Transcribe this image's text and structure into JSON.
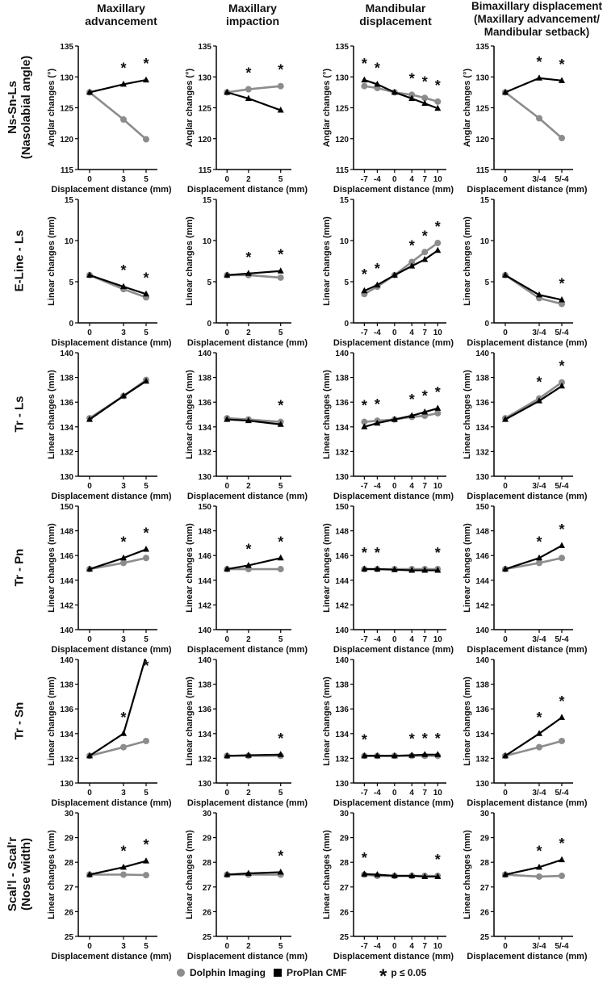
{
  "columns": [
    {
      "title": "Maxillary\nadvancement"
    },
    {
      "title": "Maxillary\nimpaction"
    },
    {
      "title": "Mandibular\ndisplacement"
    },
    {
      "title": "Bimaxillary displacement\n(Maxillary advancement/\nMandibular setback)"
    }
  ],
  "rows": [
    {
      "label": "Ns-Sn-Ls\n(Nasolabial angle)"
    },
    {
      "label": "E-Line - Ls"
    },
    {
      "label": "Tr - Ls"
    },
    {
      "label": "Tr - Pn"
    },
    {
      "label": "Tr - Sn"
    },
    {
      "label": "Scal'l - Scal'r\n(Nose width)"
    }
  ],
  "legend": {
    "dolphin": "Dolphin Imaging",
    "proplan": "ProPlan CMF",
    "sig": "p ≤ 0.05",
    "sig_symbol": "*"
  },
  "colors": {
    "dolphin": "#8c8c8c",
    "proplan": "#000000"
  },
  "chart_data": [
    {
      "type": "line",
      "row": 0,
      "col": 0,
      "xlabel": "Displacement distance (mm)",
      "ylabel": "Anglar changes (°)",
      "ylim": [
        115,
        135
      ],
      "ystep": 5,
      "x": [
        0,
        3,
        5
      ],
      "x_tick_labels": [
        "0",
        "3",
        "5"
      ],
      "series": [
        {
          "name": "Dolphin Imaging",
          "values": [
            127.5,
            123.1,
            119.9
          ]
        },
        {
          "name": "ProPlan CMF",
          "values": [
            127.5,
            128.8,
            129.5
          ]
        }
      ],
      "significant": [
        false,
        true,
        true
      ]
    },
    {
      "type": "line",
      "row": 0,
      "col": 1,
      "xlabel": "Displacement distance (mm)",
      "ylabel": "Anglar changes (°)",
      "ylim": [
        115,
        135
      ],
      "ystep": 5,
      "x": [
        0,
        2,
        5
      ],
      "x_tick_labels": [
        "0",
        "2",
        "5"
      ],
      "series": [
        {
          "name": "Dolphin Imaging",
          "values": [
            127.5,
            128.0,
            128.5
          ]
        },
        {
          "name": "ProPlan CMF",
          "values": [
            127.5,
            126.5,
            124.6
          ]
        }
      ],
      "significant": [
        false,
        true,
        true
      ]
    },
    {
      "type": "line",
      "row": 0,
      "col": 2,
      "xlabel": "Displacement distance (mm)",
      "ylabel": "Anglar changes (°)",
      "ylim": [
        115,
        135
      ],
      "ystep": 5,
      "x": [
        -7,
        -4,
        0,
        4,
        7,
        10
      ],
      "x_tick_labels": [
        "-7",
        "-4",
        "0",
        "4",
        "7",
        "10"
      ],
      "series": [
        {
          "name": "Dolphin Imaging",
          "values": [
            128.5,
            128.2,
            127.5,
            127.1,
            126.6,
            126.0
          ]
        },
        {
          "name": "ProPlan CMF",
          "values": [
            129.5,
            128.8,
            127.5,
            126.5,
            125.7,
            124.9
          ]
        }
      ],
      "significant": [
        true,
        true,
        false,
        true,
        true,
        true
      ]
    },
    {
      "type": "line",
      "row": 0,
      "col": 3,
      "xlabel": "Displacement distance (mm)",
      "ylabel": "Anglar changes (°)",
      "ylim": [
        115,
        135
      ],
      "ystep": 5,
      "x": [
        0,
        3,
        5
      ],
      "x_tick_labels": [
        "0",
        "3/-4",
        "5/-4"
      ],
      "series": [
        {
          "name": "Dolphin Imaging",
          "values": [
            127.5,
            123.3,
            120.1
          ]
        },
        {
          "name": "ProPlan CMF",
          "values": [
            127.5,
            129.8,
            129.4
          ]
        }
      ],
      "significant": [
        false,
        true,
        true
      ]
    },
    {
      "type": "line",
      "row": 1,
      "col": 0,
      "xlabel": "Displacement distance (mm)",
      "ylabel": "Linear changes (mm)",
      "ylim": [
        0,
        15
      ],
      "ystep": 5,
      "x": [
        0,
        3,
        5
      ],
      "x_tick_labels": [
        "0",
        "3",
        "5"
      ],
      "series": [
        {
          "name": "Dolphin Imaging",
          "values": [
            5.8,
            4.1,
            3.1
          ]
        },
        {
          "name": "ProPlan CMF",
          "values": [
            5.8,
            4.4,
            3.5
          ]
        }
      ],
      "significant": [
        false,
        true,
        true
      ]
    },
    {
      "type": "line",
      "row": 1,
      "col": 1,
      "xlabel": "Displacement distance (mm)",
      "ylabel": "Linear changes (mm)",
      "ylim": [
        0,
        15
      ],
      "ystep": 5,
      "x": [
        0,
        2,
        5
      ],
      "x_tick_labels": [
        "0",
        "2",
        "5"
      ],
      "series": [
        {
          "name": "Dolphin Imaging",
          "values": [
            5.8,
            5.8,
            5.5
          ]
        },
        {
          "name": "ProPlan CMF",
          "values": [
            5.8,
            6.0,
            6.3
          ]
        }
      ],
      "significant": [
        false,
        true,
        true
      ]
    },
    {
      "type": "line",
      "row": 1,
      "col": 2,
      "xlabel": "Displacement distance (mm)",
      "ylabel": "Linear changes (mm)",
      "ylim": [
        0,
        15
      ],
      "ystep": 5,
      "x": [
        -7,
        -4,
        0,
        4,
        7,
        10
      ],
      "x_tick_labels": [
        "-7",
        "-4",
        "0",
        "4",
        "7",
        "10"
      ],
      "series": [
        {
          "name": "Dolphin Imaging",
          "values": [
            3.5,
            4.4,
            5.8,
            7.4,
            8.6,
            9.7
          ]
        },
        {
          "name": "ProPlan CMF",
          "values": [
            3.9,
            4.6,
            5.8,
            6.9,
            7.7,
            8.8
          ]
        }
      ],
      "significant": [
        true,
        true,
        false,
        true,
        true,
        true
      ]
    },
    {
      "type": "line",
      "row": 1,
      "col": 3,
      "xlabel": "Displacement distance (mm)",
      "ylabel": "Linear changes (mm)",
      "ylim": [
        0,
        15
      ],
      "ystep": 5,
      "x": [
        0,
        3,
        5
      ],
      "x_tick_labels": [
        "0",
        "3/-4",
        "5/-4"
      ],
      "series": [
        {
          "name": "Dolphin Imaging",
          "values": [
            5.8,
            3.0,
            2.3
          ]
        },
        {
          "name": "ProPlan CMF",
          "values": [
            5.8,
            3.4,
            2.8
          ]
        }
      ],
      "significant": [
        false,
        false,
        true
      ]
    },
    {
      "type": "line",
      "row": 2,
      "col": 0,
      "xlabel": "Displacement distance (mm)",
      "ylabel": "Linear changes (mm)",
      "ylim": [
        130,
        140
      ],
      "ystep": 2,
      "x": [
        0,
        3,
        5
      ],
      "x_tick_labels": [
        "0",
        "3",
        "5"
      ],
      "series": [
        {
          "name": "Dolphin Imaging",
          "values": [
            134.7,
            136.5,
            137.8
          ]
        },
        {
          "name": "ProPlan CMF",
          "values": [
            134.6,
            136.5,
            137.7
          ]
        }
      ],
      "significant": [
        false,
        false,
        false
      ]
    },
    {
      "type": "line",
      "row": 2,
      "col": 1,
      "xlabel": "Displacement distance (mm)",
      "ylabel": "Linear changes (mm)",
      "ylim": [
        130,
        140
      ],
      "ystep": 2,
      "x": [
        0,
        2,
        5
      ],
      "x_tick_labels": [
        "0",
        "2",
        "5"
      ],
      "series": [
        {
          "name": "Dolphin Imaging",
          "values": [
            134.7,
            134.6,
            134.4
          ]
        },
        {
          "name": "ProPlan CMF",
          "values": [
            134.6,
            134.5,
            134.2
          ]
        }
      ],
      "significant": [
        false,
        false,
        true
      ]
    },
    {
      "type": "line",
      "row": 2,
      "col": 2,
      "xlabel": "Displacement distance (mm)",
      "ylabel": "Linear changes (mm)",
      "ylim": [
        130,
        140
      ],
      "ystep": 2,
      "x": [
        -7,
        -4,
        0,
        4,
        7,
        10
      ],
      "x_tick_labels": [
        "-7",
        "-4",
        "0",
        "4",
        "7",
        "10"
      ],
      "series": [
        {
          "name": "Dolphin Imaging",
          "values": [
            134.4,
            134.5,
            134.6,
            134.8,
            134.9,
            135.1
          ]
        },
        {
          "name": "ProPlan CMF",
          "values": [
            134.0,
            134.3,
            134.6,
            134.9,
            135.2,
            135.5
          ]
        }
      ],
      "significant": [
        true,
        true,
        false,
        true,
        true,
        true
      ]
    },
    {
      "type": "line",
      "row": 2,
      "col": 3,
      "xlabel": "Displacement distance (mm)",
      "ylabel": "Linear changes (mm)",
      "ylim": [
        130,
        140
      ],
      "ystep": 2,
      "x": [
        0,
        3,
        5
      ],
      "x_tick_labels": [
        "0",
        "3/-4",
        "5/-4"
      ],
      "series": [
        {
          "name": "Dolphin Imaging",
          "values": [
            134.7,
            136.3,
            137.6
          ]
        },
        {
          "name": "ProPlan CMF",
          "values": [
            134.6,
            136.1,
            137.3
          ]
        }
      ],
      "significant": [
        false,
        true,
        true
      ]
    },
    {
      "type": "line",
      "row": 3,
      "col": 0,
      "xlabel": "Displacement distance (mm)",
      "ylabel": "Linear changes (mm)",
      "ylim": [
        140,
        150
      ],
      "ystep": 2,
      "x": [
        0,
        3,
        5
      ],
      "x_tick_labels": [
        "0",
        "3",
        "5"
      ],
      "series": [
        {
          "name": "Dolphin Imaging",
          "values": [
            144.9,
            145.4,
            145.8
          ]
        },
        {
          "name": "ProPlan CMF",
          "values": [
            144.9,
            145.8,
            146.5
          ]
        }
      ],
      "significant": [
        false,
        true,
        true
      ]
    },
    {
      "type": "line",
      "row": 3,
      "col": 1,
      "xlabel": "Displacement distance (mm)",
      "ylabel": "Linear changes (mm)",
      "ylim": [
        140,
        150
      ],
      "ystep": 2,
      "x": [
        0,
        2,
        5
      ],
      "x_tick_labels": [
        "0",
        "2",
        "5"
      ],
      "series": [
        {
          "name": "Dolphin Imaging",
          "values": [
            144.9,
            144.9,
            144.9
          ]
        },
        {
          "name": "ProPlan CMF",
          "values": [
            144.9,
            145.2,
            145.8
          ]
        }
      ],
      "significant": [
        false,
        true,
        true
      ]
    },
    {
      "type": "line",
      "row": 3,
      "col": 2,
      "xlabel": "Displacement distance (mm)",
      "ylabel": "Linear changes (mm)",
      "ylim": [
        140,
        150
      ],
      "ystep": 2,
      "x": [
        -7,
        -4,
        0,
        4,
        7,
        10
      ],
      "x_tick_labels": [
        "-7",
        "-4",
        "0",
        "4",
        "7",
        "10"
      ],
      "series": [
        {
          "name": "Dolphin Imaging",
          "values": [
            144.9,
            144.9,
            144.9,
            144.9,
            144.9,
            144.9
          ]
        },
        {
          "name": "ProPlan CMF",
          "values": [
            144.9,
            144.9,
            144.85,
            144.8,
            144.8,
            144.8
          ]
        }
      ],
      "significant": [
        true,
        true,
        false,
        false,
        false,
        true
      ]
    },
    {
      "type": "line",
      "row": 3,
      "col": 3,
      "xlabel": "Displacement distance (mm)",
      "ylabel": "Linear changes (mm)",
      "ylim": [
        140,
        150
      ],
      "ystep": 2,
      "x": [
        0,
        3,
        5
      ],
      "x_tick_labels": [
        "0",
        "3/-4",
        "5/-4"
      ],
      "series": [
        {
          "name": "Dolphin Imaging",
          "values": [
            144.9,
            145.4,
            145.8
          ]
        },
        {
          "name": "ProPlan CMF",
          "values": [
            144.9,
            145.8,
            146.8
          ]
        }
      ],
      "significant": [
        false,
        true,
        true
      ]
    },
    {
      "type": "line",
      "row": 4,
      "col": 0,
      "xlabel": "Displacement distance (mm)",
      "ylabel": "Linear changes (mm)",
      "ylim": [
        130,
        140
      ],
      "ystep": 2,
      "x": [
        0,
        3,
        5
      ],
      "x_tick_labels": [
        "0",
        "3",
        "5"
      ],
      "series": [
        {
          "name": "Dolphin Imaging",
          "values": [
            132.2,
            132.9,
            133.4
          ]
        },
        {
          "name": "ProPlan CMF",
          "values": [
            132.2,
            134.0,
            140.3
          ]
        }
      ],
      "significant": [
        false,
        true,
        true
      ]
    },
    {
      "type": "line",
      "row": 4,
      "col": 1,
      "xlabel": "Displacement distance (mm)",
      "ylabel": "Linear changes (mm)",
      "ylim": [
        130,
        140
      ],
      "ystep": 2,
      "x": [
        0,
        2,
        5
      ],
      "x_tick_labels": [
        "0",
        "2",
        "5"
      ],
      "series": [
        {
          "name": "Dolphin Imaging",
          "values": [
            132.2,
            132.2,
            132.2
          ]
        },
        {
          "name": "ProPlan CMF",
          "values": [
            132.2,
            132.25,
            132.3
          ]
        }
      ],
      "significant": [
        false,
        false,
        true
      ]
    },
    {
      "type": "line",
      "row": 4,
      "col": 2,
      "xlabel": "Displacement distance (mm)",
      "ylabel": "Linear changes (mm)",
      "ylim": [
        130,
        140
      ],
      "ystep": 2,
      "x": [
        -7,
        -4,
        0,
        4,
        7,
        10
      ],
      "x_tick_labels": [
        "-7",
        "-4",
        "0",
        "4",
        "7",
        "10"
      ],
      "series": [
        {
          "name": "Dolphin Imaging",
          "values": [
            132.2,
            132.2,
            132.2,
            132.2,
            132.2,
            132.2
          ]
        },
        {
          "name": "ProPlan CMF",
          "values": [
            132.2,
            132.2,
            132.2,
            132.25,
            132.3,
            132.3
          ]
        }
      ],
      "significant": [
        true,
        false,
        false,
        true,
        true,
        true
      ]
    },
    {
      "type": "line",
      "row": 4,
      "col": 3,
      "xlabel": "Displacement distance (mm)",
      "ylabel": "Linear changes (mm)",
      "ylim": [
        130,
        140
      ],
      "ystep": 2,
      "x": [
        0,
        3,
        5
      ],
      "x_tick_labels": [
        "0",
        "3/-4",
        "5/-4"
      ],
      "series": [
        {
          "name": "Dolphin Imaging",
          "values": [
            132.2,
            132.9,
            133.4
          ]
        },
        {
          "name": "ProPlan CMF",
          "values": [
            132.2,
            134.0,
            135.3
          ]
        }
      ],
      "significant": [
        false,
        true,
        true
      ]
    },
    {
      "type": "line",
      "row": 5,
      "col": 0,
      "xlabel": "Displacement distance (mm)",
      "ylabel": "Linear changes (mm)",
      "ylim": [
        25,
        30
      ],
      "ystep": 1,
      "x": [
        0,
        3,
        5
      ],
      "x_tick_labels": [
        "0",
        "3",
        "5"
      ],
      "series": [
        {
          "name": "Dolphin Imaging",
          "values": [
            27.5,
            27.5,
            27.48
          ]
        },
        {
          "name": "ProPlan CMF",
          "values": [
            27.5,
            27.8,
            28.05
          ]
        }
      ],
      "significant": [
        false,
        true,
        true
      ]
    },
    {
      "type": "line",
      "row": 5,
      "col": 1,
      "xlabel": "Displacement distance (mm)",
      "ylabel": "Linear changes (mm)",
      "ylim": [
        25,
        30
      ],
      "ystep": 1,
      "x": [
        0,
        2,
        5
      ],
      "x_tick_labels": [
        "0",
        "2",
        "5"
      ],
      "series": [
        {
          "name": "Dolphin Imaging",
          "values": [
            27.5,
            27.5,
            27.5
          ]
        },
        {
          "name": "ProPlan CMF",
          "values": [
            27.5,
            27.55,
            27.6
          ]
        }
      ],
      "significant": [
        false,
        false,
        true
      ]
    },
    {
      "type": "line",
      "row": 5,
      "col": 2,
      "xlabel": "Displacement distance (mm)",
      "ylabel": "Linear changes (mm)",
      "ylim": [
        25,
        30
      ],
      "ystep": 1,
      "x": [
        -7,
        -4,
        0,
        4,
        7,
        10
      ],
      "x_tick_labels": [
        "-7",
        "-4",
        "0",
        "4",
        "7",
        "10"
      ],
      "series": [
        {
          "name": "Dolphin Imaging",
          "values": [
            27.5,
            27.45,
            27.45,
            27.45,
            27.45,
            27.45
          ]
        },
        {
          "name": "ProPlan CMF",
          "values": [
            27.52,
            27.5,
            27.45,
            27.45,
            27.42,
            27.42
          ]
        }
      ],
      "significant": [
        true,
        false,
        false,
        false,
        false,
        true
      ]
    },
    {
      "type": "line",
      "row": 5,
      "col": 3,
      "xlabel": "Displacement distance (mm)",
      "ylabel": "Linear changes (mm)",
      "ylim": [
        25,
        30
      ],
      "ystep": 1,
      "x": [
        0,
        3,
        5
      ],
      "x_tick_labels": [
        "0",
        "3/-4",
        "5/-4"
      ],
      "series": [
        {
          "name": "Dolphin Imaging",
          "values": [
            27.5,
            27.42,
            27.45
          ]
        },
        {
          "name": "ProPlan CMF",
          "values": [
            27.5,
            27.8,
            28.1
          ]
        }
      ],
      "significant": [
        false,
        true,
        true
      ]
    }
  ]
}
